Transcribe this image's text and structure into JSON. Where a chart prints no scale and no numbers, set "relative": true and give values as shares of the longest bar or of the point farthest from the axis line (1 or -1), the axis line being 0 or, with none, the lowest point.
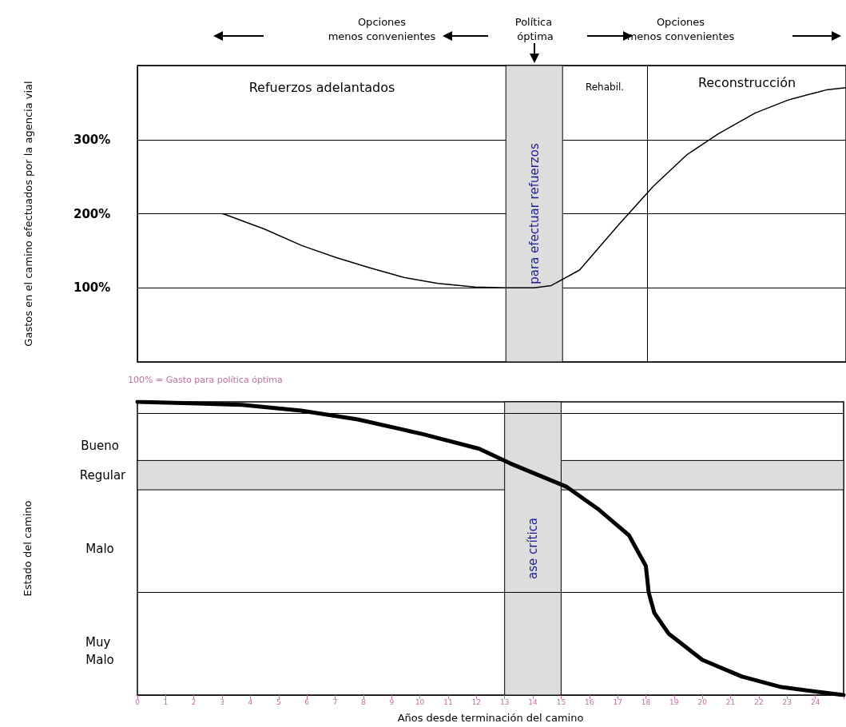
{
  "chart_data": [
    {
      "type": "line",
      "ylabel": "Gastos en el camino efectuados por la agencia vial",
      "annotations": [
        "Opciones menos convenientes",
        "Política óptima",
        "Opciones menos convenientes",
        "100% = Gasto para política óptima",
        "Refuerzos adelantados",
        "Rehabil.",
        "Reconstrucción"
      ],
      "series": [
        {
          "color": "#000000",
          "x": [
            3,
            3.1,
            4.5,
            5.8,
            7.0,
            8.2,
            9.4,
            10.6,
            11.9,
            13.0,
            14.0,
            14.6,
            15.6,
            17.0,
            18.2,
            19.4,
            20.5,
            21.8,
            23.0,
            24.3,
            25
          ],
          "values": [
            200,
            199,
            179,
            157,
            141,
            127,
            114,
            106,
            101,
            100,
            100,
            103,
            124,
            186,
            237,
            280,
            308,
            336,
            354,
            367,
            370
          ]
        }
      ],
      "xlim": [
        0,
        25
      ],
      "ylim": [
        0,
        400
      ],
      "yticks": [
        {
          "value": 100,
          "label": "100%"
        },
        {
          "value": 200,
          "label": "200%"
        },
        {
          "value": 300,
          "label": "300%"
        }
      ],
      "grid": "y",
      "tick_labels": "y",
      "bands": [
        {
          "axis": "x",
          "from": 13,
          "to": 15,
          "label": "para efectuar refuerzos",
          "color": "#dddddd"
        }
      ],
      "ref_lines": [
        {
          "axis": "x",
          "value": 18,
          "label": null
        }
      ]
    },
    {
      "type": "line",
      "relative": true,
      "ylabel": "Estado del camino",
      "xlabel": "Años desde terminación del camino",
      "series": [
        {
          "color": "#000000",
          "x": [
            0,
            3.7,
            5.8,
            7.8,
            10.1,
            12.1,
            13.2,
            15.2,
            16.3,
            17.4,
            18.0,
            18.1,
            18.3,
            18.8,
            20.0,
            21.4,
            22.8,
            25
          ],
          "values": [
            1,
            0.99,
            0.97,
            0.94,
            0.89,
            0.84,
            0.79,
            0.71,
            0.635,
            0.545,
            0.44,
            0.35,
            0.28,
            0.21,
            0.12,
            0.063,
            0.027,
            0
          ]
        }
      ],
      "xlim": [
        0,
        25
      ],
      "xticks": [
        0,
        1,
        2,
        3,
        4,
        5,
        6,
        7,
        8,
        9,
        10,
        11,
        12,
        13,
        14,
        15,
        16,
        17,
        18,
        19,
        20,
        21,
        22,
        23,
        24
      ],
      "tick_labels": "x",
      "annotations": [
        "Bueno",
        "Malo",
        "Muy Malo"
      ],
      "ref_lines": [
        {
          "axis": "y",
          "value": 0.96,
          "label": null
        },
        {
          "axis": "y",
          "value": 0.35,
          "label": null
        }
      ],
      "bands": [
        {
          "axis": "y",
          "from": 0.7,
          "to": 0.8,
          "label": "Regular",
          "color": "#dddddd"
        },
        {
          "axis": "x",
          "from": 13,
          "to": 15,
          "label": "ase crítica",
          "color": "#dddddd"
        }
      ]
    }
  ]
}
